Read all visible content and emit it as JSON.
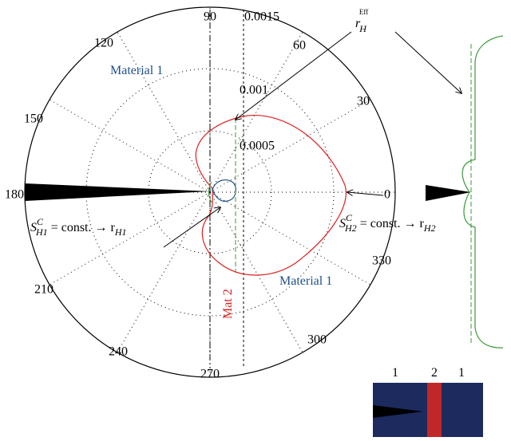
{
  "polar": {
    "angle_labels": [
      "90",
      "60",
      "30",
      "0",
      "330",
      "300",
      "270",
      "240",
      "210",
      "180",
      "150",
      "120"
    ],
    "radial_labels": [
      "0.0005",
      "0.001",
      "0.0015"
    ]
  },
  "annotations": {
    "material_top": "Material 1",
    "material_bottom": "Material 1",
    "mat2": "Mat 2",
    "r_eff": {
      "base": "r",
      "sub": "H",
      "sup": "Eff"
    },
    "left_label": {
      "s": "S",
      "sub": "H1",
      "sup": "C",
      "rest": " = const. → r",
      "rsub": "H1"
    },
    "right_label": {
      "s": "S",
      "sub": "H2",
      "sup": "C",
      "rest": " = const. → r",
      "rsub": "H2"
    }
  },
  "inset": {
    "labels": [
      "1",
      "2",
      "1"
    ]
  }
}
